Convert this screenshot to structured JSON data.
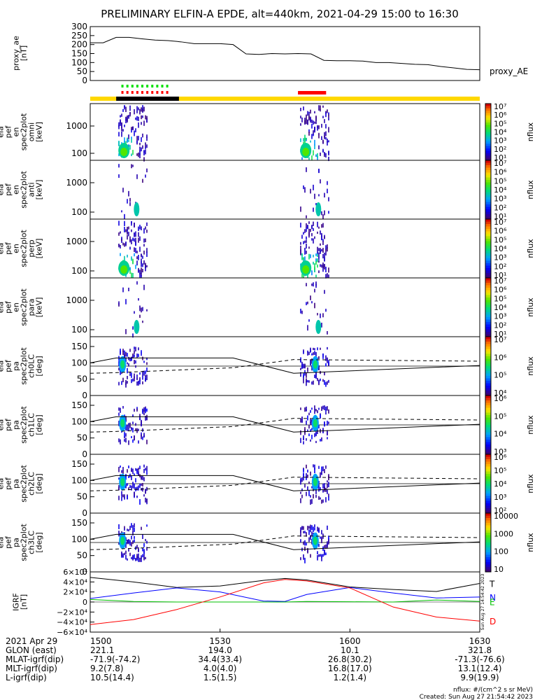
{
  "title": "PRELIMINARY ELFIN-A EPDE, alt=440km, 2021-04-29 15:00 to 16:30",
  "colors": {
    "state_bar": "#ffd800",
    "state_black": "#000000",
    "state_red": "#ff0000",
    "dash_green": "#00e000",
    "dash_red": "#ff0000",
    "grf_T": "#000000",
    "grf_N": "#0000ff",
    "grf_E": "#00c000",
    "grf_D": "#ff0000"
  },
  "time_axis": {
    "tick_labels": [
      "1500",
      "1530",
      "1600",
      "1630"
    ],
    "tick_minutes": [
      0,
      30,
      60,
      90
    ],
    "range_minutes": [
      0,
      90
    ]
  },
  "chart_data": [
    {
      "type": "line",
      "name": "proxy_ae",
      "ylabel": "proxy_ae [nT]",
      "legend": "proxy_AE",
      "yticks": [
        "300",
        "250",
        "200",
        "150",
        "100",
        "50",
        "0"
      ],
      "ylim": [
        0,
        300
      ],
      "x_minutes": [
        0,
        3,
        6,
        9,
        12,
        15,
        18,
        21,
        24,
        27,
        30,
        33,
        36,
        39,
        42,
        45,
        48,
        51,
        54,
        57,
        60,
        63,
        66,
        69,
        72,
        75,
        78,
        81,
        84,
        87,
        90
      ],
      "values": [
        210,
        210,
        240,
        240,
        232,
        225,
        222,
        215,
        205,
        205,
        205,
        200,
        148,
        145,
        150,
        148,
        150,
        148,
        112,
        110,
        110,
        108,
        100,
        100,
        95,
        90,
        88,
        78,
        70,
        62,
        60
      ]
    },
    {
      "type": "heatmap",
      "name": "ela pef en spec2plot omni [keV]",
      "ylabel": "ela pef en spec2plot omni [keV]",
      "yticks": [
        "1000",
        "100"
      ],
      "y_scale": "log",
      "colorbar": {
        "label": "nflux",
        "ticks": [
          "10⁷",
          "10⁶",
          "10⁵",
          "10⁴",
          "10³",
          "10²",
          "10¹"
        ]
      },
      "intervals_minutes": [
        [
          6.5,
          13.0
        ],
        [
          48.5,
          55.0
        ]
      ],
      "strong": true
    },
    {
      "type": "heatmap",
      "name": "ela pef en spec2plot anti [keV]",
      "ylabel": "ela pef en spec2plot anti [keV]",
      "yticks": [
        "1000",
        "100"
      ],
      "y_scale": "log",
      "colorbar": {
        "label": "nflux",
        "ticks": [
          "10⁷",
          "10⁶",
          "10⁵",
          "10⁴",
          "10³",
          "10²",
          "10¹"
        ]
      },
      "intervals_minutes": [
        [
          6.5,
          13.0
        ],
        [
          48.5,
          55.0
        ]
      ],
      "strong": false
    },
    {
      "type": "heatmap",
      "name": "ela pef en spec2plot perp [keV]",
      "ylabel": "ela pef en spec2plot perp [keV]",
      "yticks": [
        "1000",
        "100"
      ],
      "y_scale": "log",
      "colorbar": {
        "label": "nflux",
        "ticks": [
          "10⁷",
          "10⁶",
          "10⁵",
          "10⁴",
          "10³",
          "10²",
          "10¹"
        ]
      },
      "intervals_minutes": [
        [
          6.5,
          13.0
        ],
        [
          48.5,
          55.0
        ]
      ],
      "strong": true
    },
    {
      "type": "heatmap",
      "name": "ela pef en spec2plot para [keV]",
      "ylabel": "ela pef en spec2plot para [keV]",
      "yticks": [
        "1000",
        "100"
      ],
      "y_scale": "log",
      "colorbar": {
        "label": "nflux",
        "ticks": [
          "10⁷",
          "10⁶",
          "10⁵",
          "10⁴",
          "10³",
          "10²",
          "10¹"
        ]
      },
      "intervals_minutes": [
        [
          6.5,
          13.0
        ],
        [
          48.5,
          55.0
        ]
      ],
      "strong": false
    },
    {
      "type": "heatmap",
      "name": "ela pef pa spec2plot ch0LC [deg]",
      "ylabel": "ela pef pa spec2plot ch0LC [deg]",
      "yticks": [
        "150",
        "100",
        "50",
        "0"
      ],
      "ylim": [
        0,
        180
      ],
      "colorbar": {
        "label": "nflux",
        "ticks": [
          "10⁷",
          "10⁶",
          "10⁵",
          "10⁴"
        ]
      },
      "intervals_minutes": [
        [
          6.5,
          13.0
        ],
        [
          48.5,
          55.0
        ]
      ]
    },
    {
      "type": "heatmap",
      "name": "ela pef pa spec2plot ch1LC [deg]",
      "ylabel": "ela pef pa spec2plot ch1LC [deg]",
      "yticks": [
        "150",
        "100",
        "50",
        "0"
      ],
      "ylim": [
        0,
        180
      ],
      "colorbar": {
        "label": "nflux",
        "ticks": [
          "10⁶",
          "10⁵",
          "10⁴",
          "10³"
        ]
      },
      "intervals_minutes": [
        [
          6.5,
          13.0
        ],
        [
          48.5,
          55.0
        ]
      ]
    },
    {
      "type": "heatmap",
      "name": "ela pef pa spec2plot ch2LC [deg]",
      "ylabel": "ela pef pa spec2plot ch2LC [deg]",
      "yticks": [
        "150",
        "100",
        "50",
        "0"
      ],
      "ylim": [
        0,
        180
      ],
      "colorbar": {
        "label": "nflux",
        "ticks": [
          "10⁶",
          "10⁵",
          "10⁴",
          "10³",
          "10²"
        ]
      },
      "intervals_minutes": [
        [
          6.5,
          13.0
        ],
        [
          48.5,
          55.0
        ]
      ]
    },
    {
      "type": "heatmap",
      "name": "ela pef pa spec2plot ch3LC [deg]",
      "ylabel": "ela pef pa spec2plot ch3LC [deg]",
      "yticks": [
        "150",
        "100",
        "50",
        "0"
      ],
      "ylim": [
        0,
        180
      ],
      "colorbar": {
        "label": "nflux",
        "ticks": [
          "10000",
          "1000",
          "100",
          "10"
        ]
      },
      "intervals_minutes": [
        [
          6.5,
          13.0
        ],
        [
          48.5,
          55.0
        ]
      ]
    },
    {
      "type": "line",
      "name": "IGRF [nT]",
      "ylabel": "IGRF [nT]",
      "yticks": [
        "6×10⁴",
        "4×10⁴",
        "2×10⁴",
        "0",
        "−2×10⁴",
        "−4×10⁴",
        "−6×10⁴"
      ],
      "ylim": [
        -60000,
        60000
      ],
      "x_minutes": [
        0,
        10,
        20,
        30,
        40,
        45,
        50,
        60,
        70,
        80,
        90
      ],
      "series": [
        {
          "name": "T",
          "values": [
            49000,
            40000,
            29000,
            32000,
            43000,
            47000,
            44000,
            30000,
            25000,
            21000,
            37000
          ]
        },
        {
          "name": "N",
          "values": [
            7000,
            18000,
            28000,
            20000,
            2000,
            1000,
            15000,
            29000,
            18000,
            8000,
            10000
          ]
        },
        {
          "name": "E",
          "values": [
            5000,
            1000,
            0,
            0,
            0,
            0,
            1000,
            500,
            0,
            4000,
            1000
          ]
        },
        {
          "name": "D",
          "values": [
            -45000,
            -35000,
            -15000,
            10000,
            38000,
            45000,
            42000,
            28000,
            -10000,
            -30000,
            -38000
          ]
        }
      ]
    }
  ],
  "orbit_table": {
    "rows": [
      {
        "label": "2021 Apr 29",
        "values": [
          "1500",
          "1530",
          "1600",
          "1630"
        ]
      },
      {
        "label": "GLON (east)",
        "values": [
          "221.1",
          "194.0",
          "10.1",
          "321.8"
        ]
      },
      {
        "label": "MLAT-igrf(dip)",
        "values": [
          "-71.9(-74.2)",
          "34.4(33.4)",
          "26.8(30.2)",
          "-71.3(-76.6)"
        ]
      },
      {
        "label": "MLT-igrf(dip)",
        "values": [
          "9.2(7.8)",
          "4.0(4.0)",
          "16.8(17.0)",
          "13.1(12.4)"
        ]
      },
      {
        "label": "L-igrf(dip)",
        "values": [
          "10.5(14.4)",
          "1.5(1.5)",
          "1.2(1.4)",
          "9.9(19.9)"
        ]
      }
    ]
  },
  "footer": {
    "units": "nflux: #/(cm^2 s sr MeV)",
    "created": "Created: Sun Aug 27 21:54:42 2023",
    "side_stamp": "Sun Aug 27 14:54:42 2023"
  }
}
